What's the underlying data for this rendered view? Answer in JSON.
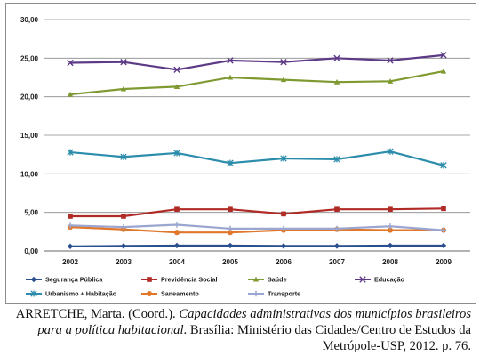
{
  "chart_data": {
    "type": "line",
    "categories": [
      "2002",
      "2003",
      "2004",
      "2005",
      "2006",
      "2007",
      "2008",
      "2009"
    ],
    "ylim": [
      0,
      30
    ],
    "yticks": [
      "0,00",
      "5,00",
      "10,00",
      "15,00",
      "20,00",
      "25,00",
      "30,00"
    ],
    "grid": "horizontal",
    "legend_placement": "bottom",
    "series": [
      {
        "name": "Segurança Pública",
        "color": "#2a4f8f",
        "marker": "diamond",
        "values": [
          0.6,
          0.65,
          0.7,
          0.7,
          0.65,
          0.65,
          0.7,
          0.7
        ]
      },
      {
        "name": "Previdência Social",
        "color": "#b02a26",
        "marker": "square",
        "values": [
          4.5,
          4.5,
          5.4,
          5.4,
          4.8,
          5.4,
          5.4,
          5.5
        ]
      },
      {
        "name": "Saúde",
        "color": "#7e9a30",
        "marker": "triangle",
        "values": [
          20.3,
          21.0,
          21.3,
          22.5,
          22.2,
          21.9,
          22.0,
          23.3
        ]
      },
      {
        "name": "Educação",
        "color": "#5c3a86",
        "marker": "x",
        "values": [
          24.4,
          24.5,
          23.5,
          24.7,
          24.5,
          25.0,
          24.7,
          25.4
        ]
      },
      {
        "name": "Urbanismo + Habitação",
        "color": "#2b8cab",
        "marker": "star",
        "values": [
          12.8,
          12.2,
          12.7,
          11.4,
          12.0,
          11.9,
          12.9,
          11.1
        ]
      },
      {
        "name": "Saneamento",
        "color": "#e0772b",
        "marker": "circle",
        "values": [
          3.1,
          2.8,
          2.4,
          2.4,
          2.7,
          2.8,
          2.7,
          2.7
        ]
      },
      {
        "name": "Transporte",
        "color": "#9aa6cf",
        "marker": "plus",
        "values": [
          3.3,
          3.1,
          3.4,
          2.9,
          2.9,
          2.9,
          3.2,
          2.7
        ]
      }
    ]
  },
  "caption": {
    "author": "ARRETCHE, Marta. (Coord.). ",
    "title": "Capacidades administrativas dos municípios brasileiros para a política habitacional",
    "rest": ". Brasília: Ministério das Cidades/Centro de Estudos da Metrópole-USP, 2012. p. 76."
  }
}
